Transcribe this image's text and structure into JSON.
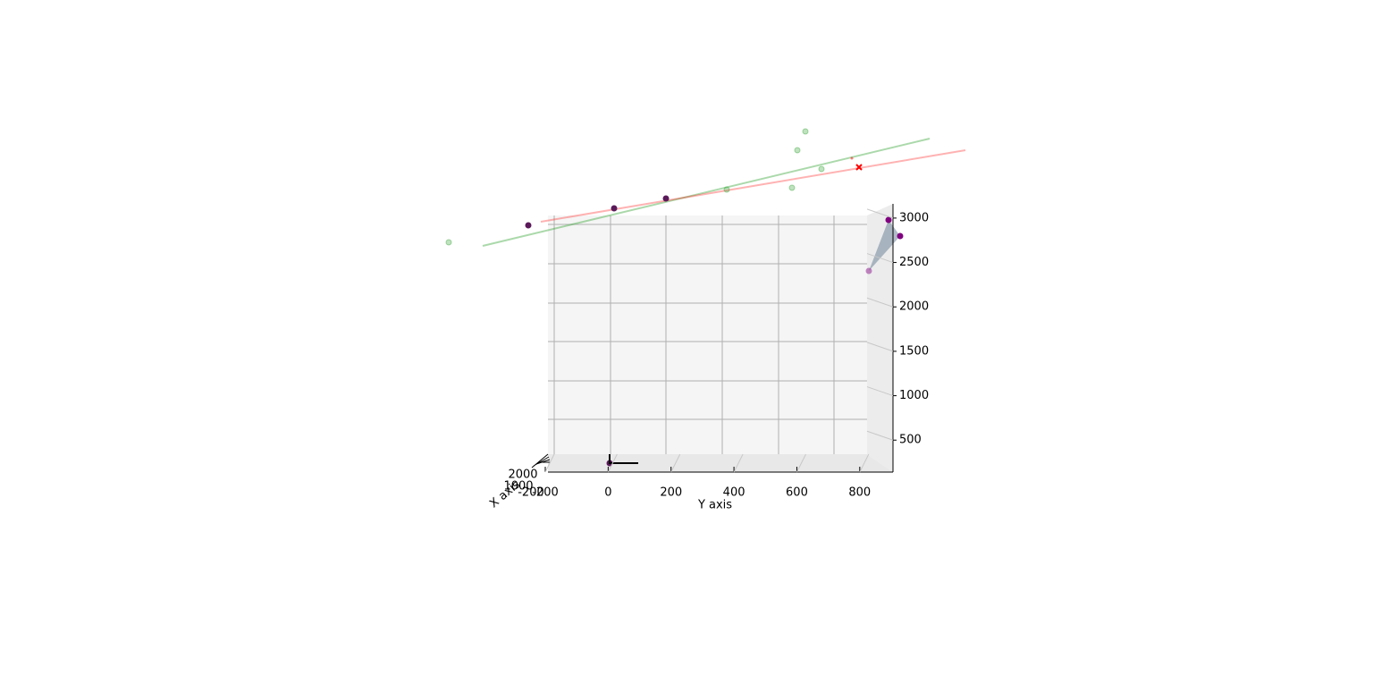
{
  "chart_data": {
    "type": "scatter3d",
    "x_label": "X axis",
    "y_label": "Y axis",
    "x_tick_labels": [
      "-200",
      "2000",
      "1000"
    ],
    "ylim": [
      -200,
      900
    ],
    "yticks": [
      -200,
      0,
      200,
      400,
      600,
      800
    ],
    "zlim": [
      140,
      3160
    ],
    "zticks": [
      500,
      1000,
      1500,
      2000,
      2500,
      3000
    ],
    "grid": true
  }
}
